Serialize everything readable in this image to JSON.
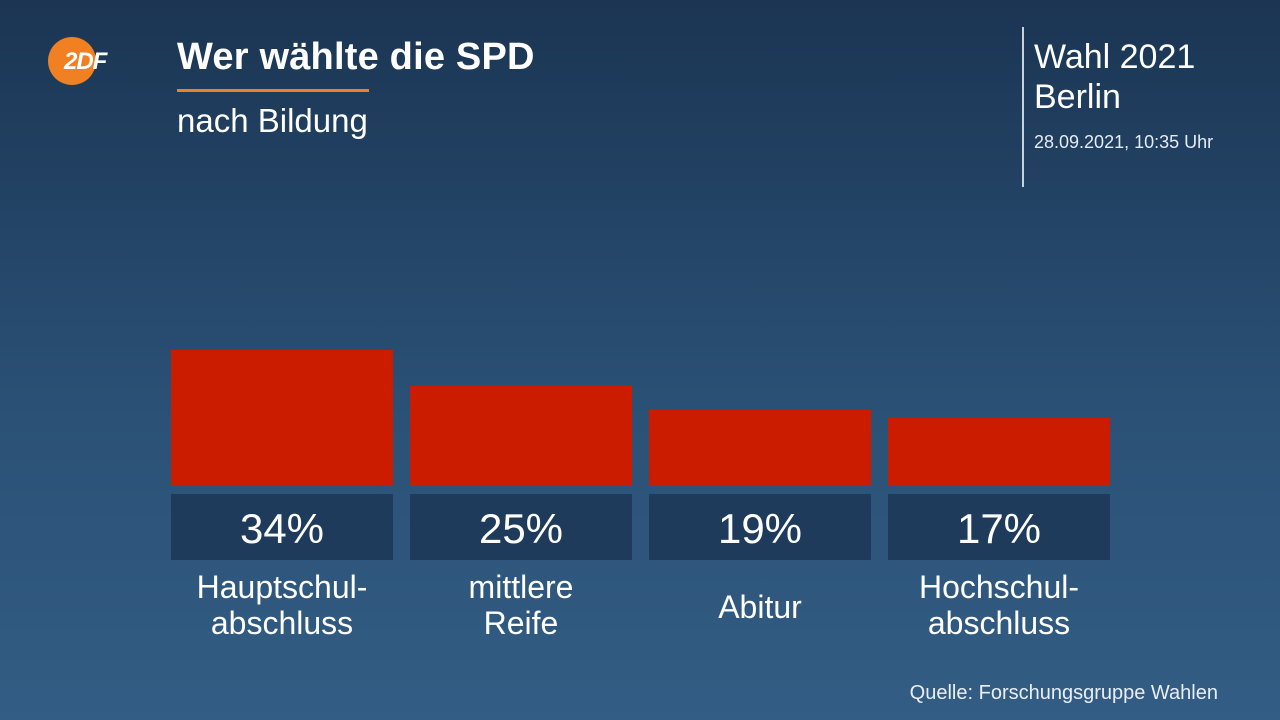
{
  "brand": {
    "logo_text": "2DF",
    "logo_color": "#f08022"
  },
  "header": {
    "title": "Wer wählte die SPD",
    "subtitle": "nach Bildung",
    "accent_color": "#f08022"
  },
  "meta": {
    "election": "Wahl 2021",
    "region": "Berlin",
    "timestamp": "28.09.2021, 10:35 Uhr"
  },
  "source": "Quelle: Forschungsgruppe Wahlen",
  "chart_data": {
    "type": "bar",
    "title": "Wer wählte die SPD",
    "subtitle": "nach Bildung",
    "unit": "%",
    "categories": [
      [
        "Hauptschul-",
        "abschluss"
      ],
      [
        "mittlere",
        "Reife"
      ],
      [
        "Abitur"
      ],
      [
        "Hochschul-",
        "abschluss"
      ]
    ],
    "value_labels": [
      "34%",
      "25%",
      "19%",
      "17%"
    ],
    "values": [
      34,
      25,
      19,
      17
    ],
    "ylim": [
      0,
      34
    ],
    "bar_color": "#cc1c00",
    "label_box_color": "#1e3b5c",
    "grid": false,
    "legend": "none"
  }
}
